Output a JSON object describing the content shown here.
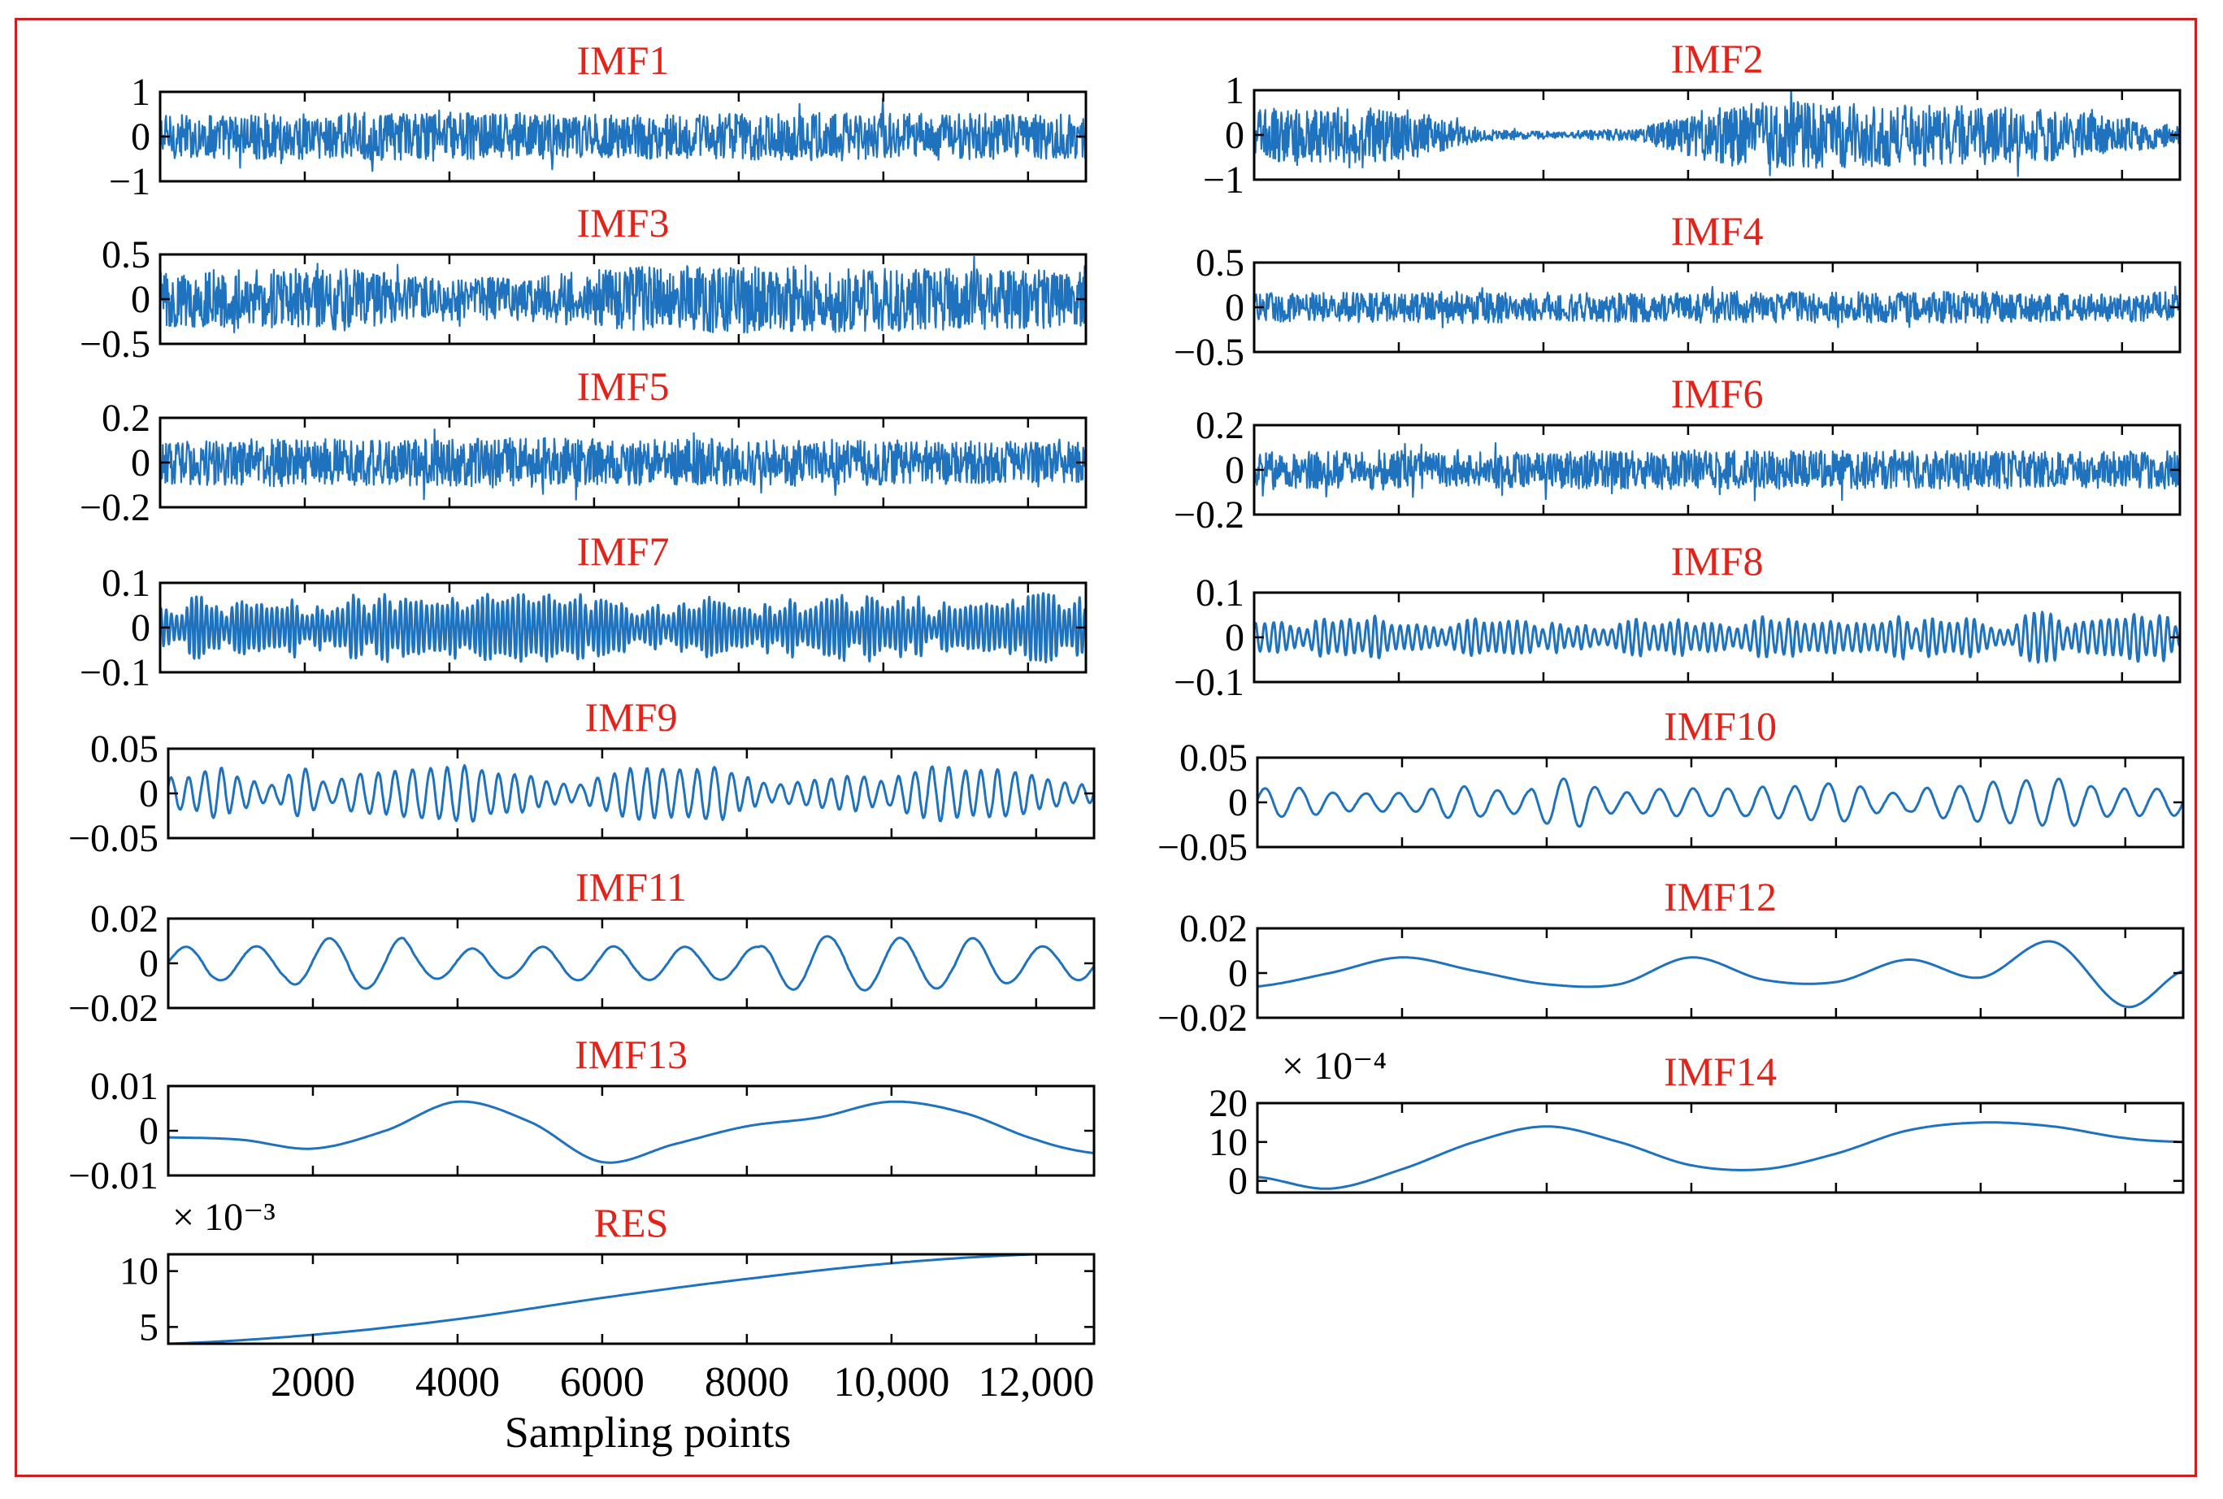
{
  "figure": {
    "frame_color": "#cc1f1f",
    "title_color": "#e2231a",
    "line_color": "#1f72bd",
    "axis_color": "#000000",
    "x_axis_label": "Sampling points",
    "x_tick_labels": [
      "2000",
      "4000",
      "6000",
      "8000",
      "10,000",
      "12,000"
    ]
  },
  "chart_data": [
    {
      "id": "IMF1",
      "type": "line",
      "title": "IMF1",
      "column": "left",
      "xlim": [
        0,
        12800
      ],
      "ylim": [
        -1,
        1
      ],
      "yticks": [
        1,
        0,
        -1
      ],
      "ytick_labels": [
        "1",
        "0",
        "−1"
      ],
      "multiplier": "",
      "shape": "noise",
      "amplitude": 0.55,
      "envelope": [
        0.9,
        0.95,
        1,
        0.95,
        0.9,
        1,
        0.95,
        0.9
      ]
    },
    {
      "id": "IMF2",
      "type": "line",
      "title": "IMF2",
      "column": "right",
      "xlim": [
        0,
        12800
      ],
      "ylim": [
        -1,
        1
      ],
      "yticks": [
        1,
        0,
        -1
      ],
      "ytick_labels": [
        "1",
        "0",
        "−1"
      ],
      "multiplier": "",
      "shape": "noise",
      "amplitude": 0.75,
      "envelope": [
        0.8,
        0.85,
        0.75,
        0.15,
        0.1,
        0.2,
        0.9,
        1,
        0.95,
        0.9,
        0.85,
        0.6,
        0.3
      ]
    },
    {
      "id": "IMF3",
      "type": "line",
      "title": "IMF3",
      "column": "left",
      "xlim": [
        0,
        12800
      ],
      "ylim": [
        -0.5,
        0.5
      ],
      "yticks": [
        0.5,
        0,
        -0.5
      ],
      "ytick_labels": [
        "0.5",
        "0",
        "−0.5"
      ],
      "multiplier": "",
      "shape": "noise",
      "amplitude": 0.42,
      "envelope": [
        0.75,
        0.8,
        0.85,
        0.55,
        0.6,
        0.85,
        0.9,
        0.9,
        0.85,
        0.8,
        0.75
      ]
    },
    {
      "id": "IMF4",
      "type": "line",
      "title": "IMF4",
      "column": "right",
      "xlim": [
        0,
        12800
      ],
      "ylim": [
        -0.5,
        0.5
      ],
      "yticks": [
        0.5,
        0,
        -0.5
      ],
      "ytick_labels": [
        "0.5",
        "0",
        "−0.5"
      ],
      "multiplier": "",
      "shape": "noise",
      "amplitude": 0.2,
      "envelope": [
        0.8,
        0.85,
        0.9,
        0.8,
        0.9,
        0.85,
        0.9,
        0.8,
        0.85
      ]
    },
    {
      "id": "IMF5",
      "type": "line",
      "title": "IMF5",
      "column": "left",
      "xlim": [
        0,
        12800
      ],
      "ylim": [
        -0.2,
        0.2
      ],
      "yticks": [
        0.2,
        0,
        -0.2
      ],
      "ytick_labels": [
        "0.2",
        "0",
        "−0.2"
      ],
      "multiplier": "",
      "shape": "noise",
      "amplitude": 0.12,
      "envelope": [
        0.8,
        0.9,
        0.85,
        0.95,
        0.85,
        0.9,
        0.85,
        0.8,
        0.75
      ]
    },
    {
      "id": "IMF6",
      "type": "line",
      "title": "IMF6",
      "column": "right",
      "xlim": [
        0,
        12800
      ],
      "ylim": [
        -0.2,
        0.2
      ],
      "yticks": [
        0.2,
        0,
        -0.2
      ],
      "ytick_labels": [
        "0.2",
        "0",
        "−0.2"
      ],
      "multiplier": "",
      "shape": "noise",
      "amplitude": 0.1,
      "envelope": [
        0.8,
        0.9,
        0.8,
        0.85,
        0.9,
        0.85,
        0.9,
        0.8,
        0.85
      ]
    },
    {
      "id": "IMF7",
      "type": "line",
      "title": "IMF7",
      "column": "left",
      "xlim": [
        0,
        12800
      ],
      "ylim": [
        -0.1,
        0.1
      ],
      "yticks": [
        0.1,
        0,
        -0.1
      ],
      "ytick_labels": [
        "0.1",
        "0",
        "−0.1"
      ],
      "multiplier": "",
      "shape": "wave",
      "amplitude": 0.075,
      "cycles": 180
    },
    {
      "id": "IMF8",
      "type": "line",
      "title": "IMF8",
      "column": "right",
      "xlim": [
        0,
        12800
      ],
      "ylim": [
        -0.1,
        0.1
      ],
      "yticks": [
        0.1,
        0,
        -0.1
      ],
      "ytick_labels": [
        "0.1",
        "0",
        "−0.1"
      ],
      "multiplier": "",
      "shape": "wave",
      "amplitude": 0.055,
      "cycles": 110
    },
    {
      "id": "IMF9",
      "type": "line",
      "title": "IMF9",
      "column": "left",
      "xlim": [
        0,
        12800
      ],
      "ylim": [
        -0.05,
        0.05
      ],
      "yticks": [
        0.05,
        0,
        -0.05
      ],
      "ytick_labels": [
        "0.05",
        "0",
        "−0.05"
      ],
      "multiplier": "",
      "shape": "wave",
      "amplitude": 0.03,
      "cycles": 55
    },
    {
      "id": "IMF10",
      "type": "line",
      "title": "IMF10",
      "column": "right",
      "xlim": [
        0,
        12800
      ],
      "ylim": [
        -0.05,
        0.05
      ],
      "yticks": [
        0.05,
        0,
        -0.05
      ],
      "ytick_labels": [
        "0.05",
        "0",
        "−0.05"
      ],
      "multiplier": "",
      "shape": "wave",
      "amplitude": 0.025,
      "cycles": 28
    },
    {
      "id": "IMF11",
      "type": "line",
      "title": "IMF11",
      "column": "left",
      "xlim": [
        0,
        12800
      ],
      "ylim": [
        -0.02,
        0.02
      ],
      "yticks": [
        0.02,
        0,
        -0.02
      ],
      "ytick_labels": [
        "0.02",
        "0",
        "−0.02"
      ],
      "multiplier": "",
      "shape": "wave",
      "amplitude": 0.011,
      "cycles": 13
    },
    {
      "id": "IMF12",
      "type": "line",
      "title": "IMF12",
      "column": "right",
      "xlim": [
        0,
        12800
      ],
      "ylim": [
        -0.02,
        0.02
      ],
      "yticks": [
        0.02,
        0,
        -0.02
      ],
      "ytick_labels": [
        "0.02",
        "0",
        "−0.02"
      ],
      "multiplier": "",
      "shape": "smooth",
      "x": [
        0,
        1000,
        2000,
        3000,
        4000,
        5000,
        6000,
        7000,
        8000,
        9000,
        10000,
        11000,
        12000,
        12800
      ],
      "y": [
        -0.006,
        0.0,
        0.007,
        0.001,
        -0.005,
        -0.005,
        0.007,
        -0.003,
        -0.004,
        0.006,
        -0.002,
        0.014,
        -0.015,
        0.001
      ]
    },
    {
      "id": "IMF13",
      "type": "line",
      "title": "IMF13",
      "column": "left",
      "xlim": [
        0,
        12800
      ],
      "ylim": [
        -0.01,
        0.01
      ],
      "yticks": [
        0.01,
        0,
        -0.01
      ],
      "ytick_labels": [
        "0.01",
        "0",
        "−0.01"
      ],
      "multiplier": "",
      "shape": "smooth",
      "x": [
        0,
        1000,
        2000,
        3000,
        4000,
        5000,
        6000,
        7000,
        8000,
        9000,
        10000,
        11000,
        12000,
        12800
      ],
      "y": [
        -0.0015,
        -0.002,
        -0.004,
        0.0,
        0.0065,
        0.002,
        -0.007,
        -0.003,
        0.001,
        0.003,
        0.0065,
        0.004,
        -0.002,
        -0.005
      ]
    },
    {
      "id": "IMF14",
      "type": "line",
      "title": "IMF14",
      "column": "right",
      "xlim": [
        0,
        12800
      ],
      "ylim": [
        -0.0003,
        0.002
      ],
      "yticks": [
        0.002,
        0.001,
        0
      ],
      "ytick_labels": [
        "20",
        "10",
        "0"
      ],
      "multiplier": "× 10⁻⁴",
      "shape": "smooth",
      "x": [
        0,
        1000,
        2000,
        3000,
        4000,
        5000,
        6000,
        7000,
        8000,
        9000,
        10000,
        11000,
        12000,
        12800
      ],
      "y": [
        0.0001,
        -0.0002,
        0.0003,
        0.001,
        0.0014,
        0.001,
        0.0004,
        0.0003,
        0.0007,
        0.0013,
        0.0015,
        0.0014,
        0.0011,
        0.001
      ]
    },
    {
      "id": "RES",
      "type": "line",
      "title": "RES",
      "column": "left",
      "xlim": [
        0,
        12800
      ],
      "ylim": [
        0.0035,
        0.0115
      ],
      "yticks": [
        0.01,
        0.005
      ],
      "ytick_labels": [
        "10",
        "5"
      ],
      "multiplier": "× 10⁻³",
      "shape": "smooth",
      "x": [
        0,
        2000,
        4000,
        6000,
        8000,
        10000,
        12000,
        12800
      ],
      "y": [
        0.0035,
        0.0043,
        0.0057,
        0.0076,
        0.0093,
        0.0107,
        0.0115,
        0.0115
      ],
      "xticks": [
        2000,
        4000,
        6000,
        8000,
        10000,
        12000
      ]
    }
  ]
}
